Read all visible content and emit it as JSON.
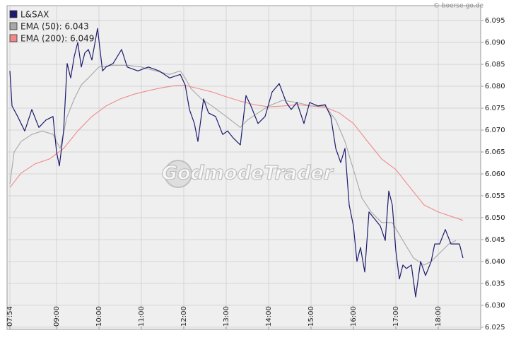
{
  "chart_data": {
    "type": "line",
    "source": "© boerse-go.de",
    "watermark": "GodmodeTrader",
    "xlim": [
      "07:50",
      "19:00"
    ],
    "xticks": [
      "07:54",
      "09:00",
      "10:00",
      "11:00",
      "12:00",
      "13:00",
      "14:00",
      "15:00",
      "16:00",
      "17:00",
      "18:00"
    ],
    "ylim": [
      6.0245,
      6.0984
    ],
    "yticks": [
      6.025,
      {
        "value": 6.03,
        "label": "6.030"
      },
      6.035,
      {
        "value": 6.04,
        "label": "6.040"
      },
      6.045,
      {
        "value": 6.05,
        "label": "6.050"
      },
      6.055,
      {
        "value": 6.06,
        "label": "6.060"
      },
      6.065,
      {
        "value": 6.07,
        "label": "6.070"
      },
      6.075,
      {
        "value": 6.08,
        "label": "6.080"
      },
      6.085,
      {
        "value": 6.09,
        "label": "6.090"
      },
      6.095
    ],
    "grid": true,
    "legend": "top-left",
    "series": [
      {
        "name": "L&SAX",
        "color": "#1c1c6e",
        "x": [
          "07:54",
          "07:57",
          "08:05",
          "08:15",
          "08:25",
          "08:35",
          "08:45",
          "08:55",
          "09:00",
          "09:04",
          "09:10",
          "09:15",
          "09:20",
          "09:25",
          "09:30",
          "09:35",
          "09:40",
          "09:45",
          "09:50",
          "09:58",
          "10:05",
          "10:10",
          "10:20",
          "10:32",
          "10:40",
          "10:55",
          "11:10",
          "11:25",
          "11:40",
          "11:55",
          "12:02",
          "12:08",
          "12:15",
          "12:20",
          "12:28",
          "12:35",
          "12:45",
          "12:55",
          "13:02",
          "13:10",
          "13:20",
          "13:28",
          "13:35",
          "13:45",
          "13:55",
          "14:05",
          "14:15",
          "14:25",
          "14:32",
          "14:40",
          "14:50",
          "14:58",
          "15:10",
          "15:20",
          "15:28",
          "15:35",
          "15:42",
          "15:48",
          "15:54",
          "16:00",
          "16:05",
          "16:10",
          "16:16",
          "16:22",
          "16:30",
          "16:38",
          "16:45",
          "16:50",
          "16:55",
          "17:00",
          "17:05",
          "17:10",
          "17:15",
          "17:22",
          "17:28",
          "17:35",
          "17:42",
          "17:50",
          "17:55",
          "18:02",
          "18:10",
          "18:18",
          "18:25",
          "18:30",
          "18:35"
        ],
        "values": [
          6.0835,
          6.0755,
          6.0731,
          6.0698,
          6.0747,
          6.0706,
          6.0723,
          6.0731,
          6.065,
          6.0618,
          6.0698,
          6.0852,
          6.0819,
          6.0868,
          6.09,
          6.0844,
          6.0876,
          6.0884,
          6.086,
          6.0932,
          6.0835,
          6.0844,
          6.0852,
          6.0884,
          6.0844,
          6.0835,
          6.0844,
          6.0835,
          6.0819,
          6.0827,
          6.0803,
          6.0747,
          6.0715,
          6.0674,
          6.0771,
          6.0739,
          6.0731,
          6.069,
          6.0698,
          6.0682,
          6.0666,
          6.0779,
          6.0755,
          6.0715,
          6.0731,
          6.0787,
          6.0806,
          6.0763,
          6.0747,
          6.0763,
          6.0715,
          6.0763,
          6.0755,
          6.0758,
          6.0731,
          6.0658,
          6.0626,
          6.0658,
          6.0529,
          6.0481,
          6.04,
          6.0432,
          6.0376,
          6.0513,
          6.0497,
          6.0481,
          6.0448,
          6.0561,
          6.0529,
          6.0424,
          6.036,
          6.0392,
          6.0384,
          6.0392,
          6.0319,
          6.04,
          6.0368,
          6.04,
          6.044,
          6.044,
          6.0473,
          6.044,
          6.044,
          6.044,
          6.0408
        ]
      },
      {
        "name": "EMA (50): 6.043",
        "color": "#a8a8a8",
        "x": [
          "07:54",
          "08:00",
          "08:10",
          "08:25",
          "08:40",
          "08:55",
          "09:05",
          "09:15",
          "09:25",
          "09:35",
          "09:45",
          "10:00",
          "10:20",
          "10:40",
          "11:00",
          "11:20",
          "11:40",
          "11:55",
          "12:02",
          "12:10",
          "12:25",
          "12:40",
          "13:00",
          "13:20",
          "13:30",
          "13:45",
          "14:00",
          "14:20",
          "14:40",
          "15:00",
          "15:20",
          "15:35",
          "15:48",
          "16:00",
          "16:12",
          "16:25",
          "16:40",
          "16:55",
          "17:10",
          "17:25",
          "17:40",
          "17:50",
          "18:00",
          "18:15",
          "18:25"
        ],
        "values": [
          6.0577,
          6.065,
          6.0674,
          6.069,
          6.0698,
          6.069,
          6.0658,
          6.0731,
          6.0771,
          6.0803,
          6.0819,
          6.0844,
          6.0848,
          6.0848,
          6.0844,
          6.0835,
          6.0827,
          6.0835,
          6.0819,
          6.0795,
          6.0771,
          6.0755,
          6.0731,
          6.0706,
          6.0723,
          6.0739,
          6.0755,
          6.0768,
          6.0763,
          6.0755,
          6.0755,
          6.0723,
          6.0674,
          6.061,
          6.0545,
          6.0513,
          6.0489,
          6.0489,
          6.0448,
          6.0408,
          6.0392,
          6.04,
          6.0416,
          6.044,
          6.0448
        ]
      },
      {
        "name": "EMA (200): 6.049",
        "color": "#f08a8a",
        "x": [
          "07:54",
          "08:10",
          "08:30",
          "08:50",
          "09:10",
          "09:30",
          "09:50",
          "10:10",
          "10:30",
          "10:50",
          "11:10",
          "11:30",
          "11:50",
          "12:02",
          "12:20",
          "12:40",
          "13:00",
          "13:20",
          "13:40",
          "14:00",
          "14:20",
          "14:40",
          "15:00",
          "15:20",
          "15:40",
          "16:00",
          "16:20",
          "16:40",
          "17:00",
          "17:20",
          "17:40",
          "18:00",
          "18:20",
          "18:35"
        ],
        "values": [
          6.0569,
          6.0602,
          6.0623,
          6.0634,
          6.0658,
          6.0698,
          6.0731,
          6.0755,
          6.0771,
          6.0782,
          6.079,
          6.0797,
          6.0802,
          6.0802,
          6.0795,
          6.0787,
          6.0776,
          6.0766,
          6.0758,
          6.0753,
          6.0755,
          6.0758,
          6.0755,
          6.0752,
          6.0739,
          6.0715,
          6.0674,
          6.0634,
          6.061,
          6.0569,
          6.0529,
          6.0513,
          6.0502,
          6.0494
        ]
      }
    ]
  }
}
